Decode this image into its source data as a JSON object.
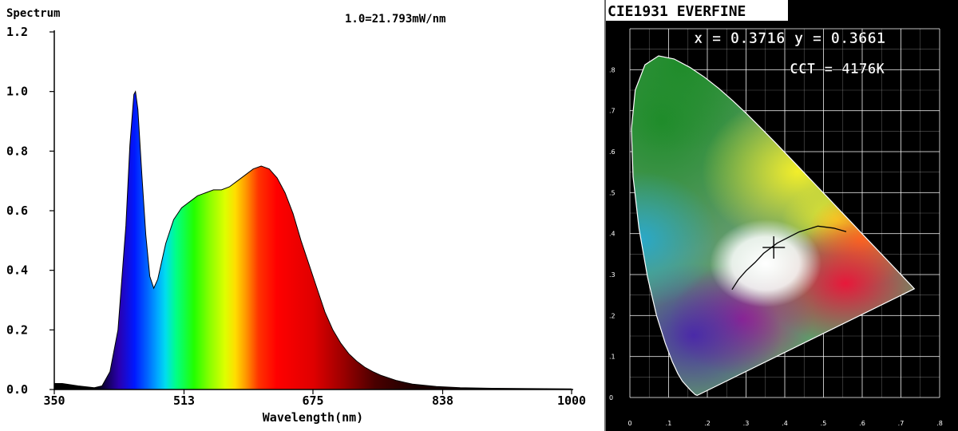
{
  "chart_data": [
    {
      "type": "area",
      "title": "Spectrum",
      "annotation": "1.0=21.793mW/nm",
      "xlabel": "Wavelength(nm)",
      "ylabel": "Spectrum",
      "xlim": [
        350,
        1000
      ],
      "ylim": [
        0,
        1.2
      ],
      "x_ticks": [
        "350",
        "513",
        "675",
        "838",
        "1000"
      ],
      "y_ticks": [
        "0.0",
        "0.2",
        "0.4",
        "0.6",
        "0.8",
        "1.0",
        "1.2"
      ],
      "fill": "wavelength-colored spectrum gradient",
      "x": [
        350,
        360,
        380,
        400,
        410,
        420,
        430,
        440,
        445,
        450,
        452,
        455,
        460,
        465,
        470,
        475,
        480,
        485,
        490,
        500,
        510,
        520,
        530,
        540,
        550,
        560,
        570,
        580,
        590,
        600,
        610,
        620,
        630,
        640,
        650,
        660,
        670,
        680,
        690,
        700,
        710,
        720,
        730,
        740,
        750,
        760,
        780,
        800,
        830,
        860,
        900,
        950,
        1000
      ],
      "y": [
        0.02,
        0.02,
        0.012,
        0.006,
        0.012,
        0.06,
        0.2,
        0.55,
        0.82,
        0.99,
        1.0,
        0.94,
        0.72,
        0.52,
        0.38,
        0.34,
        0.37,
        0.43,
        0.49,
        0.57,
        0.61,
        0.63,
        0.65,
        0.66,
        0.67,
        0.67,
        0.68,
        0.7,
        0.72,
        0.74,
        0.75,
        0.74,
        0.71,
        0.66,
        0.59,
        0.5,
        0.42,
        0.34,
        0.26,
        0.2,
        0.155,
        0.12,
        0.095,
        0.075,
        0.06,
        0.048,
        0.03,
        0.018,
        0.01,
        0.006,
        0.004,
        0.003,
        0.002
      ]
    },
    {
      "type": "scatter",
      "title": "CIE1931 EVERFINE",
      "xlim": [
        0,
        0.8
      ],
      "ylim": [
        0,
        0.9
      ],
      "point": {
        "x": 0.3716,
        "y": 0.3661
      },
      "readout_xy": "x = 0.3716 y = 0.3661",
      "readout_cct": "CCT = 4176K",
      "x_ticks": [
        "0",
        ".1",
        ".2",
        ".3",
        ".4",
        ".5",
        ".6",
        ".7",
        ".8"
      ],
      "y_ticks": [
        "0",
        ".1",
        ".2",
        ".3",
        ".4",
        ".5",
        ".6",
        ".7",
        ".8"
      ],
      "locus": [
        [
          0.1741,
          0.005
        ],
        [
          0.1689,
          0.0069
        ],
        [
          0.1566,
          0.0177
        ],
        [
          0.1355,
          0.0399
        ],
        [
          0.1241,
          0.0578
        ],
        [
          0.1096,
          0.0868
        ],
        [
          0.0913,
          0.1327
        ],
        [
          0.0687,
          0.2007
        ],
        [
          0.0454,
          0.295
        ],
        [
          0.0235,
          0.4127
        ],
        [
          0.0082,
          0.5384
        ],
        [
          0.0039,
          0.6548
        ],
        [
          0.0139,
          0.7502
        ],
        [
          0.0389,
          0.812
        ],
        [
          0.0743,
          0.8338
        ],
        [
          0.1142,
          0.8262
        ],
        [
          0.1547,
          0.8059
        ],
        [
          0.1929,
          0.7816
        ],
        [
          0.2296,
          0.7543
        ],
        [
          0.2658,
          0.7243
        ],
        [
          0.3016,
          0.6923
        ],
        [
          0.3373,
          0.6589
        ],
        [
          0.3731,
          0.6245
        ],
        [
          0.4087,
          0.5896
        ],
        [
          0.4441,
          0.5547
        ],
        [
          0.4788,
          0.5202
        ],
        [
          0.5125,
          0.4866
        ],
        [
          0.5448,
          0.4544
        ],
        [
          0.5752,
          0.4242
        ],
        [
          0.6029,
          0.3965
        ],
        [
          0.627,
          0.3725
        ],
        [
          0.6482,
          0.3514
        ],
        [
          0.6658,
          0.334
        ],
        [
          0.6915,
          0.3083
        ],
        [
          0.7347,
          0.2653
        ]
      ],
      "planckian": [
        [
          0.2637,
          0.2633
        ],
        [
          0.2806,
          0.2883
        ],
        [
          0.3003,
          0.3094
        ],
        [
          0.323,
          0.3295
        ],
        [
          0.3451,
          0.3516
        ],
        [
          0.3804,
          0.3768
        ],
        [
          0.4369,
          0.4041
        ],
        [
          0.4855,
          0.4182
        ],
        [
          0.5261,
          0.4133
        ],
        [
          0.5587,
          0.4048
        ]
      ]
    }
  ]
}
